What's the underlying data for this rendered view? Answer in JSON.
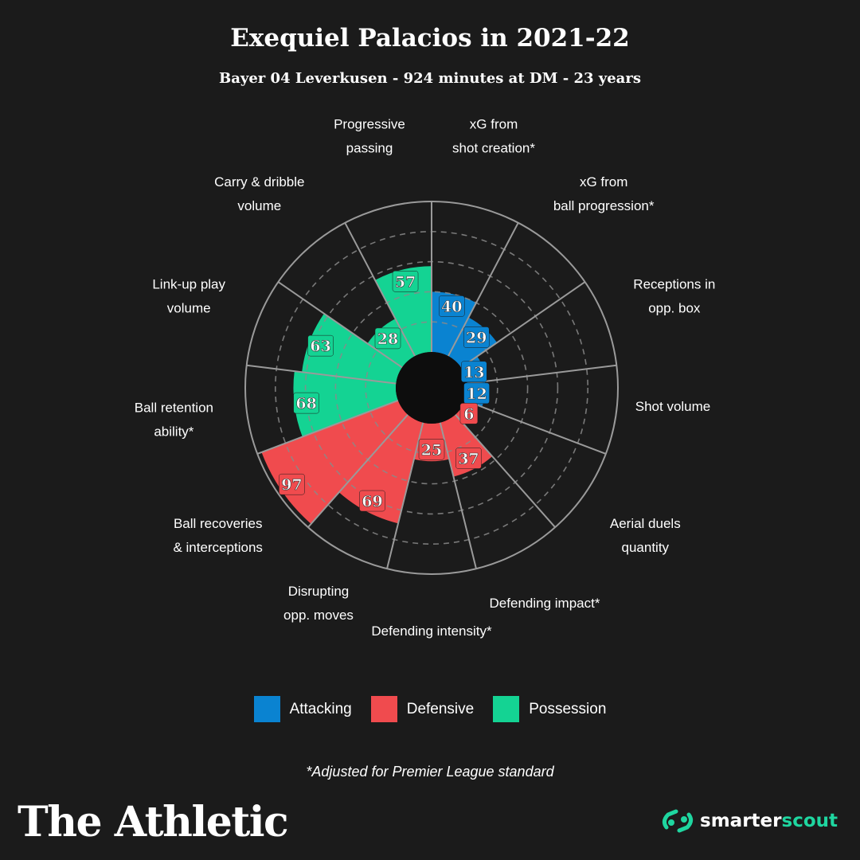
{
  "header": {
    "title": "Exequiel Palacios in 2021-22",
    "subtitle": "Bayer 04 Leverkusen - 924 minutes at DM - 23 years"
  },
  "colors": {
    "background": "#1b1b1b",
    "attacking": "#0a83d1",
    "defensive": "#f04b4e",
    "possession": "#14d393",
    "grid": "#8a8a8a"
  },
  "chart_data": {
    "type": "polar-bar",
    "scale": [
      0,
      100
    ],
    "gridlines": [
      20,
      40,
      60,
      80
    ],
    "categories": [
      {
        "label": [
          "xG from",
          "shot creation*"
        ],
        "value": 40,
        "group": "attacking"
      },
      {
        "label": [
          "xG from",
          "ball progression*"
        ],
        "value": 29,
        "group": "attacking"
      },
      {
        "label": [
          "Receptions in",
          "opp. box"
        ],
        "value": 13,
        "group": "attacking"
      },
      {
        "label": [
          "Shot volume"
        ],
        "value": 12,
        "group": "attacking"
      },
      {
        "label": [
          "Aerial duels",
          "quantity"
        ],
        "value": 6,
        "group": "defensive"
      },
      {
        "label": [
          "Defending impact*"
        ],
        "value": 37,
        "group": "defensive"
      },
      {
        "label": [
          "Defending intensity*"
        ],
        "value": 25,
        "group": "defensive"
      },
      {
        "label": [
          "Disrupting",
          "opp. moves"
        ],
        "value": 69,
        "group": "defensive"
      },
      {
        "label": [
          "Ball recoveries",
          "& interceptions"
        ],
        "value": 97,
        "group": "defensive"
      },
      {
        "label": [
          "Ball retention",
          "ability*"
        ],
        "value": 68,
        "group": "possession"
      },
      {
        "label": [
          "Link-up play",
          "volume"
        ],
        "value": 63,
        "group": "possession"
      },
      {
        "label": [
          "Carry & dribble",
          "volume"
        ],
        "value": 28,
        "group": "possession"
      },
      {
        "label": [
          "Progressive",
          "passing"
        ],
        "value": 57,
        "group": "possession"
      }
    ]
  },
  "legend": [
    {
      "key": "attacking",
      "label": "Attacking"
    },
    {
      "key": "defensive",
      "label": "Defensive"
    },
    {
      "key": "possession",
      "label": "Possession"
    }
  ],
  "footnote": "*Adjusted for Premier League standard",
  "brand": "The Athletic",
  "partner": {
    "part1": "smarter",
    "part2": "scout"
  }
}
